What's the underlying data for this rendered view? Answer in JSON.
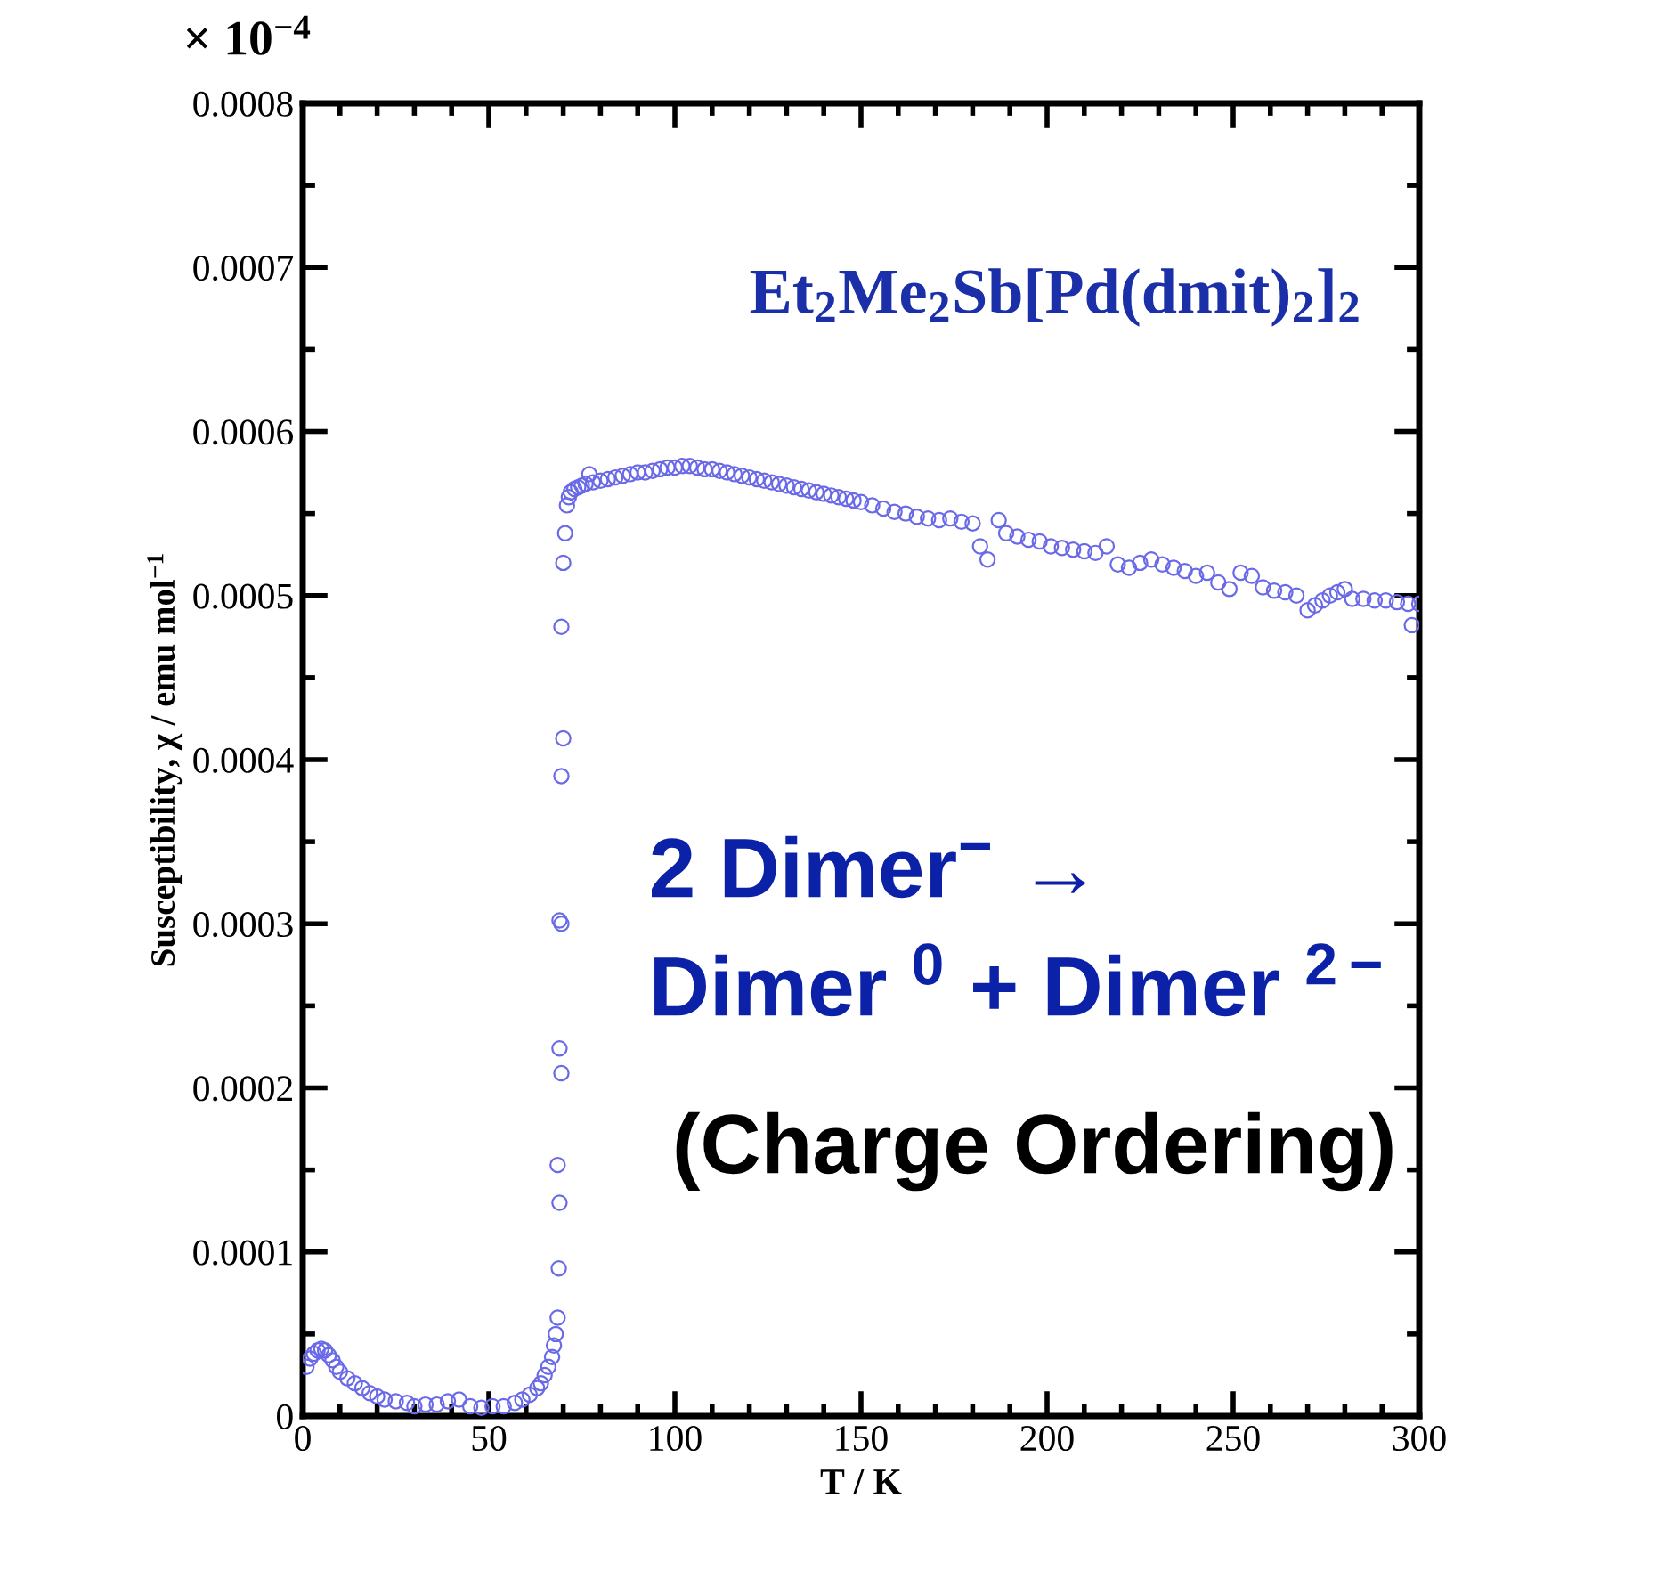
{
  "chart_data": {
    "type": "scatter",
    "marker": "circle",
    "grid": false,
    "legend": false,
    "xlabel": "T / K",
    "ylabel": "Susceptibility, χ / emu mol$^{−1}$",
    "xlim": [
      0,
      300
    ],
    "xticks": [
      0,
      50,
      100,
      150,
      200,
      250,
      300
    ],
    "ylim": [
      0,
      0.0008
    ],
    "yticks": [
      {
        "value": 0,
        "label": "0"
      },
      0.0001,
      0.0002,
      0.0003,
      0.0004,
      0.0005,
      0.0006,
      0.0007,
      0.0008
    ],
    "annotations": [
      "× 10$^{−4}$",
      "Et$_{2}$Me$_{2}$Sb[Pd(dmit)$_{2}$]$_{2}$",
      "2 Dimer$^{−}$ →",
      "Dimer $^{0}$ + Dimer $^{2−}$",
      " (Charge Ordering)"
    ],
    "series": [
      {
        "color": "#6a6ae8",
        "x": [
          1,
          2,
          3,
          4,
          5,
          6,
          7,
          8,
          9,
          10,
          12,
          14,
          16,
          18,
          20,
          22,
          25,
          28,
          30,
          33,
          36,
          39,
          42,
          45,
          48,
          51,
          54,
          57,
          59,
          61,
          63,
          64,
          65,
          66,
          67,
          67.5,
          68,
          68.5,
          68.8,
          69,
          68.5,
          69.5,
          69,
          69.5,
          69,
          69.5,
          70,
          69.5,
          70,
          70.5,
          71,
          71.5,
          72,
          73,
          74,
          75,
          76,
          77,
          78,
          80,
          82,
          84,
          86,
          88,
          90,
          92,
          94,
          96,
          98,
          100,
          102,
          104,
          106,
          108,
          110,
          112,
          114,
          116,
          118,
          120,
          122,
          124,
          126,
          128,
          130,
          132,
          134,
          136,
          138,
          140,
          142,
          144,
          146,
          148,
          150,
          153,
          156,
          159,
          162,
          165,
          168,
          171,
          174,
          177,
          180,
          182,
          184,
          187,
          189,
          192,
          195,
          198,
          201,
          204,
          207,
          210,
          213,
          216,
          219,
          222,
          225,
          228,
          231,
          234,
          237,
          240,
          243,
          246,
          249,
          252,
          255,
          258,
          261,
          264,
          267,
          270,
          272,
          274,
          276,
          278,
          280,
          282,
          285,
          288,
          291,
          294,
          297,
          298,
          300
        ],
        "values": [
          3e-05,
          3.5e-05,
          3.8e-05,
          4e-05,
          4.1e-05,
          4e-05,
          3.7e-05,
          3.4e-05,
          3e-05,
          2.7e-05,
          2.3e-05,
          2e-05,
          1.7e-05,
          1.4e-05,
          1.2e-05,
          1e-05,
          9e-06,
          8e-06,
          6e-06,
          7e-06,
          7e-06,
          9e-06,
          1e-05,
          6e-06,
          5e-06,
          6e-06,
          6e-06,
          8e-06,
          1e-05,
          1.3e-05,
          1.7e-05,
          2e-05,
          2.5e-05,
          3e-05,
          3.6e-05,
          4.3e-05,
          5e-05,
          6e-05,
          9e-05,
          0.00013,
          0.000153,
          0.000209,
          0.000224,
          0.0003,
          0.000302,
          0.00039,
          0.000413,
          0.000481,
          0.00052,
          0.000538,
          0.000555,
          0.00056,
          0.000563,
          0.000565,
          0.000566,
          0.000567,
          0.000568,
          0.000574,
          0.000569,
          0.00057,
          0.000571,
          0.000572,
          0.000573,
          0.000574,
          0.000575,
          0.000575,
          0.000576,
          0.000577,
          0.000578,
          0.000578,
          0.000579,
          0.000579,
          0.000578,
          0.000577,
          0.000577,
          0.000576,
          0.000575,
          0.000574,
          0.000573,
          0.000572,
          0.000571,
          0.00057,
          0.000569,
          0.000568,
          0.000567,
          0.000566,
          0.000565,
          0.000564,
          0.000563,
          0.000562,
          0.000561,
          0.00056,
          0.000559,
          0.000558,
          0.000557,
          0.000555,
          0.000553,
          0.000551,
          0.00055,
          0.000548,
          0.000547,
          0.000546,
          0.000547,
          0.000545,
          0.000544,
          0.00053,
          0.000522,
          0.000546,
          0.000538,
          0.000536,
          0.000534,
          0.000533,
          0.00053,
          0.000529,
          0.000528,
          0.000527,
          0.000526,
          0.00053,
          0.000519,
          0.000517,
          0.00052,
          0.000522,
          0.000519,
          0.000517,
          0.000515,
          0.000512,
          0.000514,
          0.000508,
          0.000504,
          0.000514,
          0.000512,
          0.000505,
          0.000503,
          0.000502,
          0.0005,
          0.000491,
          0.000494,
          0.000497,
          0.0005,
          0.000502,
          0.000504,
          0.000498,
          0.000498,
          0.000497,
          0.000497,
          0.000496,
          0.000495,
          0.000482,
          0.000495
        ]
      }
    ]
  }
}
